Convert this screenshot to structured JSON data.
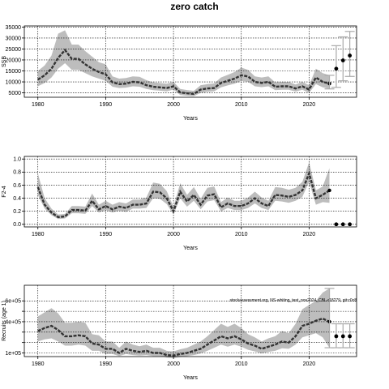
{
  "title": "zero catch",
  "chart_data": [
    {
      "type": "line",
      "panel": "ssb",
      "ylabel": "SSB",
      "xlabel": "Years",
      "xlim": [
        1978,
        2027
      ],
      "ylim": [
        3000,
        35500
      ],
      "xticks": [
        1980,
        1990,
        2000,
        2010,
        2020
      ],
      "yticks": [
        5000,
        10000,
        15000,
        20000,
        25000,
        30000,
        35000
      ],
      "grid": true,
      "band_color": "#bdbdbd",
      "line_color": "#333333",
      "x": [
        1980,
        1981,
        1982,
        1983,
        1984,
        1985,
        1986,
        1987,
        1988,
        1989,
        1990,
        1991,
        1992,
        1993,
        1994,
        1995,
        1996,
        1997,
        1998,
        1999,
        2000,
        2001,
        2002,
        2003,
        2004,
        2005,
        2006,
        2007,
        2008,
        2009,
        2010,
        2011,
        2012,
        2013,
        2014,
        2015,
        2016,
        2017,
        2018,
        2019,
        2020,
        2021,
        2022,
        2023
      ],
      "y": [
        11000,
        13000,
        16000,
        21000,
        24500,
        20500,
        20500,
        18000,
        16000,
        14500,
        13500,
        9800,
        9000,
        9200,
        10000,
        9800,
        8500,
        7800,
        7500,
        7200,
        8000,
        5200,
        4800,
        4500,
        6500,
        7000,
        7200,
        9500,
        10500,
        11500,
        13000,
        12500,
        10000,
        9500,
        10000,
        7800,
        8000,
        8000,
        7000,
        8000,
        6500,
        12000,
        10000,
        9200
      ],
      "lower": [
        8000,
        9500,
        12000,
        16000,
        18500,
        15500,
        15500,
        14000,
        12500,
        11500,
        10500,
        7800,
        7200,
        7400,
        8000,
        7800,
        6800,
        6200,
        6000,
        5700,
        6500,
        4000,
        3700,
        3500,
        5000,
        5500,
        5700,
        7500,
        8400,
        9200,
        10500,
        10000,
        8000,
        7600,
        8000,
        6200,
        6400,
        6400,
        5600,
        6400,
        5000,
        9000,
        7500,
        6800
      ],
      "upper": [
        15000,
        17500,
        22000,
        32000,
        33500,
        27000,
        27000,
        24000,
        21500,
        19000,
        18000,
        12500,
        11500,
        11800,
        12500,
        12300,
        10800,
        9800,
        9500,
        9200,
        10000,
        6800,
        6300,
        5900,
        8500,
        9000,
        9300,
        12000,
        13200,
        14500,
        16500,
        15500,
        12500,
        12000,
        12500,
        9800,
        10000,
        10000,
        8800,
        10000,
        8500,
        16000,
        14000,
        13000
      ],
      "projection": {
        "x": [
          2024,
          2025,
          2026
        ],
        "y": [
          16000,
          19800,
          22000
        ],
        "lower": [
          7500,
          10500,
          12500
        ],
        "upper": [
          26500,
          30500,
          33000
        ]
      }
    },
    {
      "type": "line",
      "panel": "fbar",
      "ylabel": "F2-4",
      "xlabel": "Years",
      "xlim": [
        1978,
        2027
      ],
      "ylim": [
        -0.04,
        1.04
      ],
      "xticks": [
        1980,
        1990,
        2000,
        2010,
        2020
      ],
      "yticks": [
        0.0,
        0.2,
        0.4,
        0.6,
        0.8,
        1.0
      ],
      "grid": true,
      "band_color": "#bdbdbd",
      "line_color": "#333333",
      "x": [
        1980,
        1981,
        1982,
        1983,
        1984,
        1985,
        1986,
        1987,
        1988,
        1989,
        1990,
        1991,
        1992,
        1993,
        1994,
        1995,
        1996,
        1997,
        1998,
        1999,
        2000,
        2001,
        2002,
        2003,
        2004,
        2005,
        2006,
        2007,
        2008,
        2009,
        2010,
        2011,
        2012,
        2013,
        2014,
        2015,
        2016,
        2017,
        2018,
        2019,
        2020,
        2021,
        2022,
        2023
      ],
      "y": [
        0.57,
        0.3,
        0.18,
        0.11,
        0.12,
        0.22,
        0.22,
        0.21,
        0.36,
        0.23,
        0.28,
        0.23,
        0.27,
        0.25,
        0.3,
        0.3,
        0.32,
        0.5,
        0.49,
        0.4,
        0.2,
        0.5,
        0.35,
        0.45,
        0.3,
        0.44,
        0.46,
        0.26,
        0.32,
        0.28,
        0.28,
        0.32,
        0.4,
        0.32,
        0.28,
        0.45,
        0.44,
        0.42,
        0.45,
        0.52,
        0.78,
        0.4,
        0.45,
        0.52
      ],
      "lower": [
        0.45,
        0.24,
        0.14,
        0.08,
        0.09,
        0.17,
        0.17,
        0.16,
        0.28,
        0.18,
        0.22,
        0.18,
        0.21,
        0.19,
        0.24,
        0.24,
        0.25,
        0.4,
        0.39,
        0.31,
        0.15,
        0.4,
        0.27,
        0.36,
        0.23,
        0.35,
        0.37,
        0.2,
        0.25,
        0.22,
        0.22,
        0.25,
        0.32,
        0.25,
        0.22,
        0.36,
        0.35,
        0.33,
        0.36,
        0.42,
        0.65,
        0.3,
        0.34,
        0.33
      ],
      "upper": [
        0.78,
        0.4,
        0.24,
        0.15,
        0.16,
        0.28,
        0.28,
        0.27,
        0.47,
        0.3,
        0.36,
        0.3,
        0.34,
        0.32,
        0.38,
        0.38,
        0.41,
        0.64,
        0.62,
        0.51,
        0.27,
        0.63,
        0.45,
        0.57,
        0.39,
        0.56,
        0.58,
        0.34,
        0.41,
        0.36,
        0.36,
        0.41,
        0.5,
        0.41,
        0.36,
        0.57,
        0.56,
        0.53,
        0.56,
        0.65,
        0.95,
        0.52,
        0.58,
        0.86
      ],
      "projection": {
        "x": [
          2024,
          2025,
          2026
        ],
        "y": [
          0.0,
          0.0,
          0.0
        ]
      }
    },
    {
      "type": "line",
      "panel": "recruits",
      "ylabel": "Recruits (age 1)",
      "xlabel": "Years",
      "xlim": [
        1978,
        2027
      ],
      "ylim": [
        0.65,
        7.5
      ],
      "xticks": [
        1980,
        1990,
        2000,
        2010,
        2020
      ],
      "yticks": [
        1,
        2,
        3,
        4,
        5,
        6
      ],
      "ytick_labels": [
        "1e+05",
        "",
        "",
        "4e+05",
        "",
        "6e+05"
      ],
      "grid": true,
      "band_color": "#bdbdbd",
      "line_color": "#333333",
      "annotation": "stockassessment.org, NS-whiting_test_nov2024_CBL-r18279, git:c0c8",
      "x": [
        1980,
        1981,
        1982,
        1983,
        1984,
        1985,
        1986,
        1987,
        1988,
        1989,
        1990,
        1991,
        1992,
        1993,
        1994,
        1995,
        1996,
        1997,
        1998,
        1999,
        2000,
        2001,
        2002,
        2003,
        2004,
        2005,
        2006,
        2007,
        2008,
        2009,
        2010,
        2011,
        2012,
        2013,
        2014,
        2015,
        2016,
        2017,
        2018,
        2019,
        2020,
        2021,
        2022,
        2023
      ],
      "y": [
        3.1,
        3.4,
        3.6,
        3.2,
        2.6,
        2.6,
        2.7,
        2.6,
        1.9,
        1.8,
        1.4,
        1.4,
        1.0,
        1.4,
        1.2,
        1.1,
        1.2,
        1.0,
        1.0,
        0.8,
        0.75,
        0.9,
        1.0,
        1.2,
        1.4,
        1.8,
        2.2,
        2.6,
        2.4,
        2.6,
        2.3,
        1.9,
        1.7,
        1.4,
        1.6,
        1.8,
        2.1,
        2.0,
        2.6,
        3.6,
        3.8,
        4.1,
        4.3,
        4.0
      ],
      "lower": [
        2.1,
        2.3,
        2.4,
        2.1,
        1.7,
        1.7,
        1.8,
        1.7,
        1.2,
        1.2,
        0.9,
        0.9,
        0.7,
        0.9,
        0.8,
        0.75,
        0.8,
        0.7,
        0.7,
        0.55,
        0.5,
        0.6,
        0.7,
        0.8,
        0.95,
        1.2,
        1.5,
        1.8,
        1.6,
        1.8,
        1.6,
        1.3,
        1.15,
        0.95,
        1.1,
        1.2,
        1.45,
        1.4,
        1.8,
        2.5,
        2.7,
        2.9,
        2.5,
        1.5
      ],
      "upper": [
        4.5,
        4.9,
        5.3,
        4.8,
        3.9,
        3.9,
        4.0,
        3.9,
        2.8,
        2.7,
        2.1,
        2.1,
        1.5,
        2.1,
        1.8,
        1.65,
        1.8,
        1.5,
        1.5,
        1.2,
        1.15,
        1.35,
        1.5,
        1.8,
        2.1,
        2.6,
        3.2,
        3.8,
        3.5,
        3.8,
        3.4,
        2.8,
        2.5,
        2.1,
        2.4,
        2.6,
        3.1,
        2.9,
        3.8,
        5.2,
        5.6,
        6.0,
        6.8,
        7.2
      ],
      "projection": {
        "x": [
          2024,
          2025,
          2026
        ],
        "y": [
          2.6,
          2.6,
          2.6
        ],
        "lower": [
          1.5,
          1.5,
          1.5
        ],
        "upper": [
          3.8,
          3.8,
          3.8
        ]
      }
    }
  ]
}
